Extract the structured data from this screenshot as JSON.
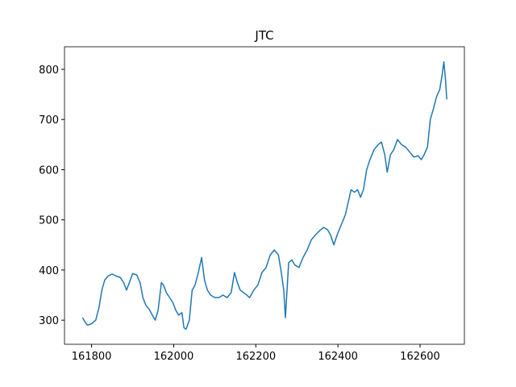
{
  "chart_data": {
    "type": "line",
    "title": "JTC",
    "x": [
      161778,
      161785,
      161790,
      161800,
      161810,
      161818,
      161825,
      161832,
      161840,
      161850,
      161860,
      161870,
      161878,
      161885,
      161892,
      161900,
      161910,
      161918,
      161925,
      161932,
      161940,
      161948,
      161955,
      161962,
      161970,
      161975,
      161982,
      161990,
      161998,
      162005,
      162012,
      162020,
      162025,
      162030,
      162038,
      162045,
      162052,
      162060,
      162068,
      162075,
      162082,
      162090,
      162100,
      162110,
      162120,
      162130,
      162140,
      162148,
      162155,
      162162,
      162170,
      162178,
      162185,
      162195,
      162205,
      162215,
      162225,
      162235,
      162245,
      162255,
      162262,
      162268,
      162272,
      162276,
      162280,
      162288,
      162295,
      162305,
      162315,
      162325,
      162335,
      162345,
      162355,
      162365,
      162375,
      162382,
      162390,
      162398,
      162408,
      162418,
      162425,
      162432,
      162440,
      162448,
      162455,
      162462,
      162470,
      162478,
      162488,
      162498,
      162506,
      162514,
      162520,
      162528,
      162536,
      162545,
      162555,
      162565,
      162575,
      162585,
      162595,
      162603,
      162610,
      162618,
      162625,
      162632,
      162640,
      162648,
      162654,
      162658,
      162662,
      162665
    ],
    "series": [
      {
        "color": "#1f77b4",
        "values": [
          305,
          295,
          290,
          293,
          300,
          325,
          360,
          380,
          388,
          392,
          388,
          385,
          375,
          360,
          375,
          393,
          390,
          375,
          345,
          330,
          322,
          310,
          300,
          320,
          375,
          370,
          355,
          345,
          335,
          320,
          310,
          315,
          285,
          282,
          300,
          360,
          370,
          395,
          425,
          380,
          360,
          350,
          345,
          345,
          350,
          345,
          355,
          395,
          375,
          360,
          355,
          350,
          345,
          360,
          370,
          395,
          405,
          430,
          440,
          430,
          395,
          360,
          305,
          360,
          415,
          420,
          410,
          405,
          425,
          440,
          460,
          470,
          478,
          485,
          480,
          470,
          450,
          470,
          490,
          510,
          535,
          560,
          555,
          560,
          545,
          560,
          600,
          620,
          640,
          650,
          655,
          630,
          595,
          630,
          640,
          660,
          650,
          645,
          635,
          625,
          628,
          620,
          630,
          645,
          700,
          720,
          745,
          760,
          790,
          815,
          780,
          740
        ]
      }
    ],
    "xlim": [
      161734,
      162708
    ],
    "ylim": [
      252,
      845
    ],
    "xticks": [
      161800,
      162000,
      162200,
      162400,
      162600
    ],
    "yticks": [
      300,
      400,
      500,
      600,
      700,
      800
    ]
  }
}
